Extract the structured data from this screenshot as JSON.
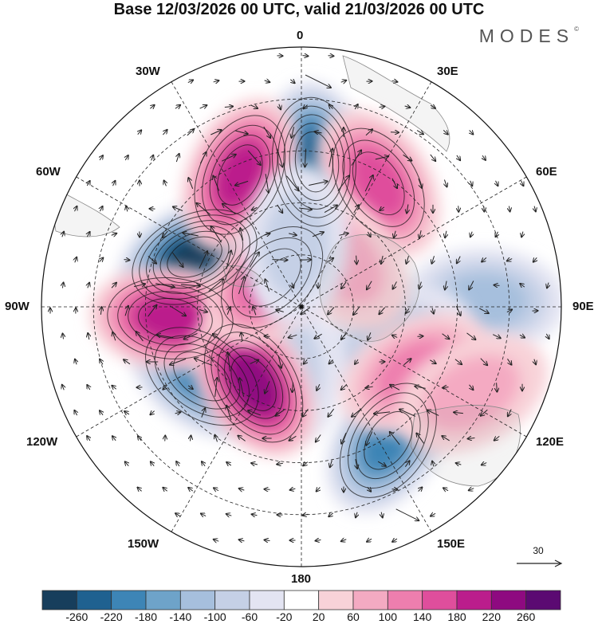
{
  "title": "Base 12/03/2026 00 UTC, valid 21/03/2026 00 UTC",
  "brand": "MODES",
  "brand_mark": "©",
  "longitude_labels": {
    "lon_0": "0",
    "lon_30e": "30E",
    "lon_60e": "60E",
    "lon_90e": "90E",
    "lon_120e": "120E",
    "lon_150e": "150E",
    "lon_180": "180",
    "lon_150w": "150W",
    "lon_120w": "120W",
    "lon_90w": "90W",
    "lon_60w": "60W",
    "lon_30w": "30W"
  },
  "reference_vector": {
    "label": "30"
  },
  "colorbar": {
    "ticks": [
      "-260",
      "-220",
      "-180",
      "-140",
      "-100",
      "-60",
      "-20",
      "20",
      "60",
      "100",
      "140",
      "180",
      "220",
      "260"
    ],
    "colors": [
      "#173e5c",
      "#1f6190",
      "#3d85b6",
      "#6ea3c9",
      "#a6bfdd",
      "#c5d0e6",
      "#e3e4f2",
      "#ffffff",
      "#f8d2d8",
      "#f4aac2",
      "#ee7eae",
      "#df4e9c",
      "#bb1d8c",
      "#8e0a80",
      "#5b0a72"
    ]
  },
  "anomaly_features": [
    {
      "name": "neg-lon0",
      "lon": 5,
      "colat": 42,
      "value": -220
    },
    {
      "name": "neg-lon65w",
      "lon": -65,
      "colat": 34,
      "value": -260
    },
    {
      "name": "neg-lon125w",
      "lon": -125,
      "colat": 35,
      "value": -200
    },
    {
      "name": "neg-lon150e",
      "lon": 147,
      "colat": 46,
      "value": -180
    },
    {
      "name": "neg-lon90e",
      "lon": 88,
      "colat": 53,
      "value": -100
    },
    {
      "name": "neg-lon100e",
      "lon": 110,
      "colat": 28,
      "value": -90
    },
    {
      "name": "neg-lon165w",
      "lon": -165,
      "colat": 16,
      "value": -80
    },
    {
      "name": "pos-lon25w",
      "lon": -25,
      "colat": 42,
      "value": 200
    },
    {
      "name": "pos-lon25e",
      "lon": 32,
      "colat": 42,
      "value": 140
    },
    {
      "name": "pos-lon95w",
      "lon": -95,
      "colat": 38,
      "value": 200
    },
    {
      "name": "pos-lon150w",
      "lon": -148,
      "colat": 26,
      "value": 220
    },
    {
      "name": "pos-lon125e",
      "lon": 120,
      "colat": 38,
      "value": 100
    },
    {
      "name": "pos-lon45w",
      "lon": -45,
      "colat": 12,
      "value": 140
    },
    {
      "name": "pos-lon30e",
      "lon": 40,
      "colat": 18,
      "value": 80
    },
    {
      "name": "pos-lon110e",
      "lon": 117,
      "colat": 55,
      "value": 70
    },
    {
      "name": "neg-lon0s",
      "lon": -5,
      "colat": 18,
      "value": -60
    }
  ]
}
